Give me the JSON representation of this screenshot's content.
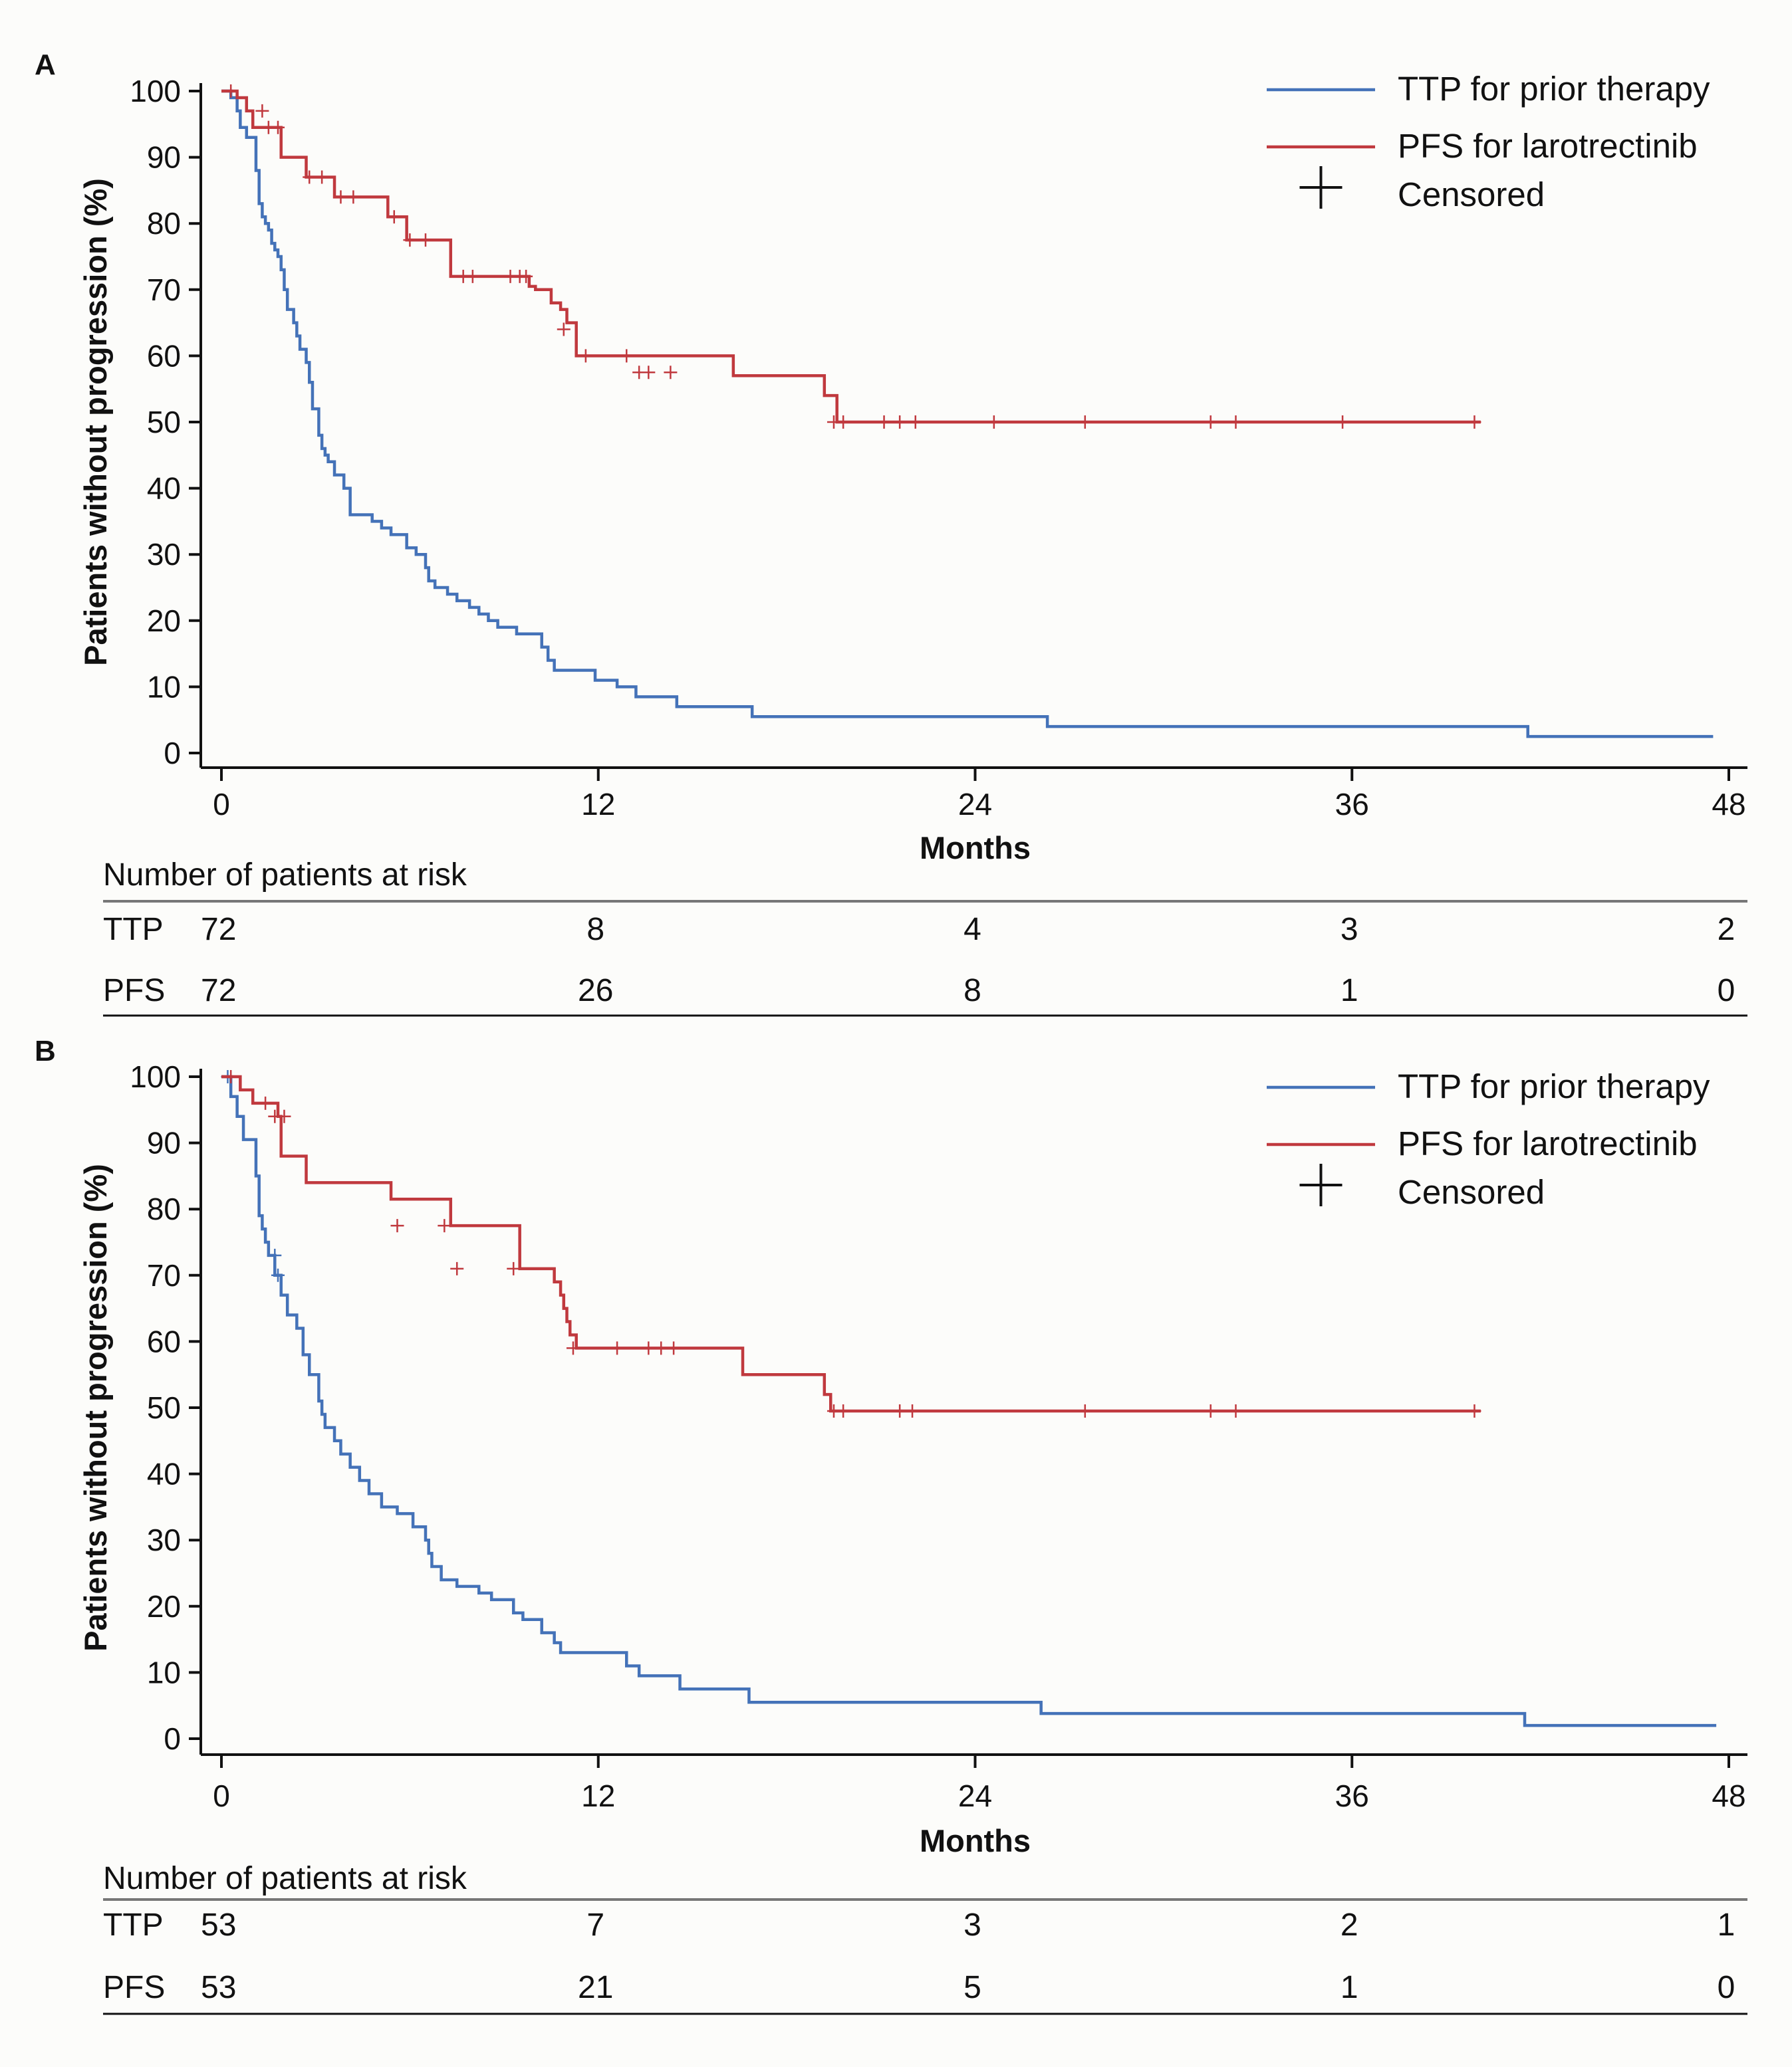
{
  "colors": {
    "ttp": "#4472b8",
    "pfs": "#c0393e",
    "axis": "#111111",
    "text": "#111111"
  },
  "chart_data": [
    {
      "type": "line",
      "panel_label": "A",
      "title": "",
      "xlabel": "Months",
      "ylabel": "Patients without progression (%)",
      "xlim": [
        0,
        48
      ],
      "ylim": [
        0,
        100
      ],
      "xticks": [
        0,
        12,
        24,
        36,
        48
      ],
      "yticks": [
        0,
        10,
        20,
        30,
        40,
        50,
        60,
        70,
        80,
        90,
        100
      ],
      "grid": false,
      "legend": {
        "position": "top-right",
        "items": [
          {
            "label": "TTP for prior therapy",
            "marker": "line",
            "color_key": "ttp"
          },
          {
            "label": "PFS for larotrectinib",
            "marker": "line",
            "color_key": "pfs"
          },
          {
            "label": "Censored",
            "marker": "plus",
            "color_key": ""
          }
        ]
      },
      "series": [
        {
          "name": "TTP for prior therapy",
          "color_key": "ttp",
          "step_x": [
            0,
            0.3,
            0.5,
            0.6,
            0.8,
            1.1,
            1.2,
            1.3,
            1.4,
            1.5,
            1.6,
            1.7,
            1.8,
            1.9,
            2.0,
            2.1,
            2.3,
            2.4,
            2.5,
            2.7,
            2.8,
            2.9,
            3.1,
            3.2,
            3.3,
            3.4,
            3.6,
            3.9,
            4.1,
            4.5,
            4.8,
            5.1,
            5.4,
            5.9,
            6.2,
            6.5,
            6.6,
            6.8,
            7.2,
            7.5,
            7.9,
            8.2,
            8.5,
            8.8,
            9.4,
            10.2,
            10.4,
            10.6,
            11.1,
            11.9,
            12.6,
            13.2,
            14.5,
            16.9,
            26.3,
            41.6,
            47.5
          ],
          "step_y": [
            100,
            99,
            97,
            94.5,
            93,
            88,
            83,
            81,
            80,
            79,
            77,
            76,
            75,
            73,
            70,
            67,
            65,
            63,
            61,
            59,
            56,
            52,
            48,
            46,
            45,
            44,
            42,
            40,
            36,
            36,
            35,
            34,
            33,
            31,
            30,
            28,
            26,
            25,
            24,
            23,
            22,
            21,
            20,
            19,
            18,
            16,
            14,
            12.5,
            12.5,
            11,
            10,
            8.5,
            7,
            5.5,
            4,
            2.5,
            2.5
          ]
        },
        {
          "name": "PFS for larotrectinib",
          "color_key": "pfs",
          "step_x": [
            0,
            0.5,
            0.8,
            1.0,
            1.9,
            2.7,
            3.6,
            5.3,
            5.9,
            7.3,
            9.8,
            10.0,
            10.5,
            10.8,
            11.0,
            11.3,
            12.5,
            16.3,
            19.2,
            19.6,
            40.1
          ],
          "step_y": [
            100,
            99,
            97,
            94.5,
            90,
            87,
            84,
            81,
            77.5,
            72,
            70.5,
            70,
            68,
            67,
            65,
            60,
            60,
            57,
            54,
            50,
            50
          ],
          "censored_x": [
            0.3,
            1.3,
            1.5,
            1.8,
            2.8,
            3.2,
            3.8,
            4.2,
            5.5,
            6.0,
            6.5,
            7.7,
            8.0,
            9.2,
            9.5,
            9.7,
            10.9,
            11.6,
            12.9,
            13.3,
            13.6,
            14.3,
            19.5,
            19.8,
            21.1,
            21.6,
            22.1,
            24.6,
            27.5,
            31.5,
            32.3,
            35.7,
            39.9
          ],
          "censored_y": [
            100,
            97,
            94.5,
            94.5,
            87,
            87,
            84,
            84,
            81,
            77.5,
            77.5,
            72,
            72,
            72,
            72,
            72,
            64,
            60,
            60,
            57.5,
            57.5,
            57.5,
            50,
            50,
            50,
            50,
            50,
            50,
            50,
            50,
            50,
            50,
            50
          ]
        }
      ],
      "risk_table": {
        "title": "Number of patients at risk",
        "timepoints": [
          0,
          12,
          24,
          36,
          48
        ],
        "rows": [
          {
            "label": "TTP",
            "values": [
              "72",
              "8",
              "4",
              "3",
              "2"
            ]
          },
          {
            "label": "PFS",
            "values": [
              "72",
              "26",
              "8",
              "1",
              "0"
            ]
          }
        ]
      }
    },
    {
      "type": "line",
      "panel_label": "B",
      "title": "",
      "xlabel": "Months",
      "ylabel": "Patients without progression (%)",
      "xlim": [
        0,
        48
      ],
      "ylim": [
        0,
        100
      ],
      "xticks": [
        0,
        12,
        24,
        36,
        48
      ],
      "yticks": [
        0,
        10,
        20,
        30,
        40,
        50,
        60,
        70,
        80,
        90,
        100
      ],
      "grid": false,
      "legend": {
        "position": "top-right",
        "items": [
          {
            "label": "TTP for prior therapy",
            "marker": "line",
            "color_key": "ttp"
          },
          {
            "label": "PFS for larotrectinib",
            "marker": "line",
            "color_key": "pfs"
          },
          {
            "label": "Censored",
            "marker": "plus",
            "color_key": ""
          }
        ]
      },
      "series": [
        {
          "name": "TTP for prior therapy",
          "color_key": "ttp",
          "step_x": [
            0,
            0.3,
            0.5,
            0.7,
            1.1,
            1.2,
            1.3,
            1.4,
            1.5,
            1.7,
            1.9,
            2.1,
            2.4,
            2.6,
            2.8,
            3.1,
            3.2,
            3.3,
            3.6,
            3.8,
            4.1,
            4.4,
            4.7,
            5.1,
            5.6,
            6.1,
            6.5,
            6.6,
            6.7,
            7.0,
            7.5,
            8.2,
            8.6,
            9.3,
            9.6,
            10.2,
            10.6,
            10.8,
            11.1,
            12.9,
            13.3,
            14.6,
            16.8,
            26.1,
            41.5,
            47.6
          ],
          "step_y": [
            100,
            97,
            94,
            90.5,
            85,
            79,
            77,
            75,
            73,
            70,
            67,
            64,
            62,
            58,
            55,
            51,
            49,
            47,
            45,
            43,
            41,
            39,
            37,
            35,
            34,
            32,
            30,
            28,
            26,
            24,
            23,
            22,
            21,
            19,
            18,
            16,
            14.5,
            13,
            13,
            11,
            9.5,
            7.5,
            5.5,
            3.8,
            2,
            2
          ],
          "censored_x": [
            0.2,
            1.7,
            1.8
          ],
          "censored_y": [
            100,
            73,
            70
          ]
        },
        {
          "name": "PFS for larotrectinib",
          "color_key": "pfs",
          "step_x": [
            0,
            0.6,
            1.0,
            1.8,
            1.9,
            2.7,
            5.4,
            7.3,
            9.5,
            10.6,
            10.8,
            10.9,
            11.0,
            11.1,
            11.3,
            16.6,
            19.2,
            19.4,
            40.1
          ],
          "step_y": [
            100,
            98,
            96,
            94,
            88,
            84,
            81.5,
            77.5,
            71,
            69,
            67,
            65,
            63,
            61,
            59,
            55,
            52,
            49.5,
            49.5
          ],
          "censored_x": [
            0.3,
            1.4,
            1.7,
            2.0,
            5.6,
            7.1,
            7.5,
            9.3,
            11.2,
            12.6,
            13.6,
            14.0,
            14.4,
            19.5,
            19.8,
            21.6,
            22.0,
            27.5,
            31.5,
            32.3,
            39.9
          ],
          "censored_y": [
            100,
            96,
            94,
            94,
            77.5,
            77.5,
            71,
            71,
            59,
            59,
            59,
            59,
            59,
            49.5,
            49.5,
            49.5,
            49.5,
            49.5,
            49.5,
            49.5,
            49.5
          ]
        }
      ],
      "risk_table": {
        "title": "Number of patients at risk",
        "timepoints": [
          0,
          12,
          24,
          36,
          48
        ],
        "rows": [
          {
            "label": "TTP",
            "values": [
              "53",
              "7",
              "3",
              "2",
              "1"
            ]
          },
          {
            "label": "PFS",
            "values": [
              "53",
              "21",
              "5",
              "1",
              "0"
            ]
          }
        ]
      }
    }
  ]
}
